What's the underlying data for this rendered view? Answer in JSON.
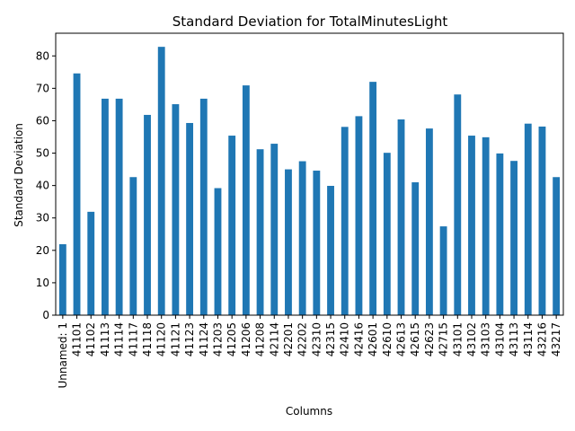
{
  "chart_data": {
    "type": "bar",
    "title": "Standard Deviation for TotalMinutesLight",
    "xlabel": "Columns",
    "ylabel": "Standard Deviation",
    "ylim": [
      0,
      87
    ],
    "yticks": [
      0,
      10,
      20,
      30,
      40,
      50,
      60,
      70,
      80
    ],
    "grid": false,
    "bar_color": "#1f77b4",
    "categories": [
      "Unnamed: 1",
      "41101",
      "41102",
      "41113",
      "41114",
      "41117",
      "41118",
      "41120",
      "41121",
      "41123",
      "41124",
      "41203",
      "41205",
      "41206",
      "41208",
      "42114",
      "42201",
      "42202",
      "42310",
      "42315",
      "42410",
      "42416",
      "42601",
      "42610",
      "42613",
      "42615",
      "42623",
      "42715",
      "43101",
      "43102",
      "43103",
      "43104",
      "43113",
      "43114",
      "43216",
      "43217"
    ],
    "values": [
      21.9,
      74.6,
      31.9,
      66.8,
      66.8,
      42.6,
      61.8,
      82.8,
      65.1,
      59.3,
      66.8,
      39.2,
      55.4,
      70.9,
      51.2,
      52.9,
      45.0,
      47.5,
      44.6,
      39.9,
      58.1,
      61.4,
      72.0,
      50.1,
      60.4,
      41.0,
      57.6,
      27.4,
      68.1,
      55.4,
      54.9,
      49.9,
      47.6,
      59.1,
      58.2,
      42.6
    ]
  }
}
